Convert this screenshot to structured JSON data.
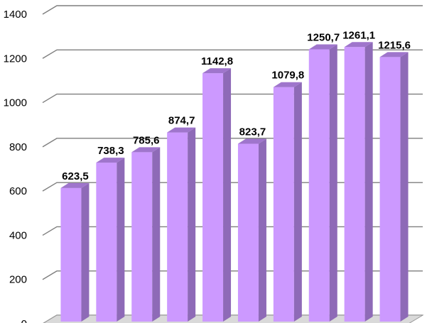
{
  "chart_data": {
    "type": "bar",
    "categories": [
      "",
      "",
      "",
      "",
      "",
      "",
      "",
      "",
      "",
      ""
    ],
    "values": [
      623.5,
      738.3,
      785.6,
      874.7,
      1142.8,
      823.7,
      1079.8,
      1250.7,
      1261.1,
      1215.6
    ],
    "data_labels": [
      "623,5",
      "738,3",
      "785,6",
      "874,7",
      "1142,8",
      "823,7",
      "1079,8",
      "1250,7",
      "1261,1",
      "1215,6"
    ],
    "yticks": [
      "0",
      "200",
      "400",
      "600",
      "800",
      "1000",
      "1200",
      "1400"
    ],
    "ylim": [
      0,
      1400
    ],
    "title": "",
    "xlabel": "",
    "ylabel": "",
    "grid": true,
    "style": "3d-column",
    "colors": {
      "bar_front": "#cc99ff",
      "bar_side": "#8e6ab7",
      "bar_top": "#9f75cc",
      "gridline": "#7f7f7f"
    }
  }
}
